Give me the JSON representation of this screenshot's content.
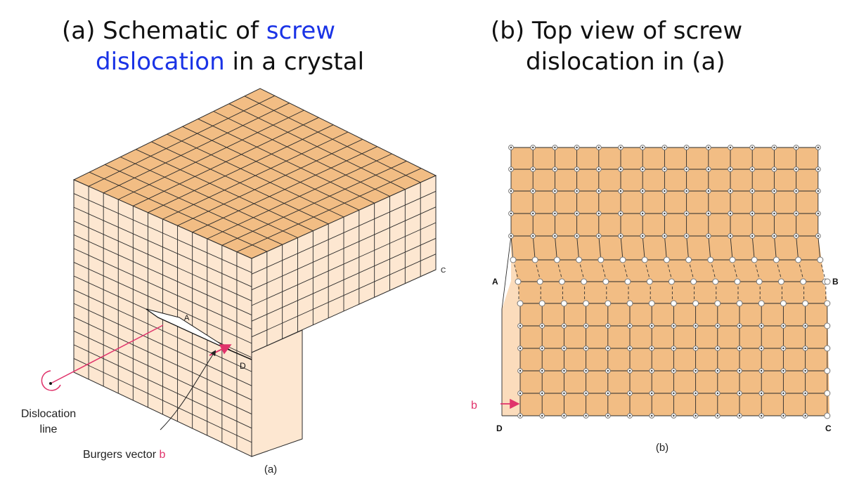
{
  "panel_a": {
    "title_prefix": "(a) Schematic of ",
    "title_highlight_1": "screw",
    "title_highlight_2": "dislocation",
    "title_suffix": " in a crystal",
    "label_A": "A",
    "label_C": "C",
    "label_D": "D",
    "dislocation_line_1": "Dislocation",
    "dislocation_line_2": "line",
    "burgers_text": "Burgers vector ",
    "burgers_symbol": "b",
    "caption": "(a)"
  },
  "panel_b": {
    "title_line_1": "(b) Top view of screw",
    "title_line_2": "dislocation in (a)",
    "label_A": "A",
    "label_B": "B",
    "label_C": "C",
    "label_D": "D",
    "burgers_symbol": "b",
    "caption": "(b)"
  },
  "colors": {
    "highlight_blue": "#1a33e6",
    "accent_pink": "#e0336b",
    "top_face": "#f2bd84",
    "side_face": "#fde7d1",
    "grid_line": "#2a2a2a",
    "lattice_fill": "#f2bd84",
    "lattice_light": "#fbdcbc"
  }
}
